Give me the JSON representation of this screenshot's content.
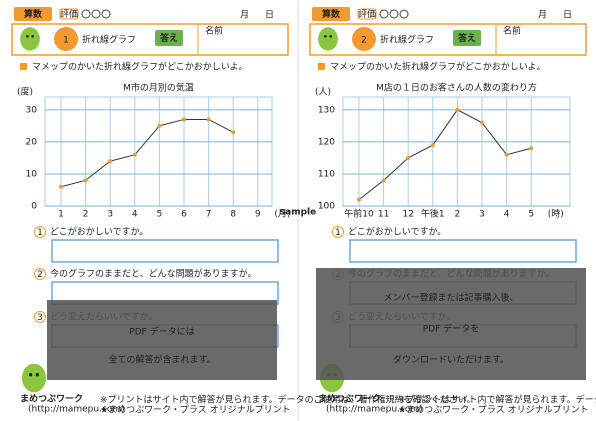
{
  "watermark": "sample",
  "pages": [
    {
      "subject": "算数",
      "rating": "評価",
      "month": "月",
      "day": "日",
      "number": "1",
      "topic": "折れ線グラフ",
      "answer": "答え",
      "name": "名前",
      "prompt": "マメップのかいた折れ線グラフがどこかおかしいよ。",
      "questions": [
        {
          "number": "1",
          "text": "どこがおかしいですか。"
        },
        {
          "number": "2",
          "text": "今のグラフのままだと、どんな問題がありますか。"
        },
        {
          "number": "3",
          "text": "どう変えたらいいですか。"
        }
      ],
      "overlay": [
        "PDF データには",
        "全ての解答が含まれます。"
      ],
      "footer": {
        "logo": "まめつぶワーク",
        "url": "(http://mamepu.com)",
        "note": "※プリントはサイト内で解答が見られます。データのご使用は、著作権規約を確認ください。",
        "brand": "★まめつぶワーク・プラス オリジナルプリント"
      }
    },
    {
      "subject": "算数",
      "rating": "評価",
      "month": "月",
      "day": "日",
      "number": "2",
      "topic": "折れ線グラフ",
      "answer": "答え",
      "name": "名前",
      "prompt": "マメップのかいた折れ線グラフがどこかおかしいよ。",
      "questions": [
        {
          "number": "1",
          "text": "どこがおかしいですか。"
        },
        {
          "number": "2",
          "text": "今のグラフのままだと、どんな問題がありますか。"
        },
        {
          "number": "3",
          "text": "どう変えたらいいですか。"
        }
      ],
      "overlay": [
        "メンバー登録または記事購入後、",
        "PDF データを",
        "ダウンロードいただけます。"
      ],
      "footer": {
        "logo": "まめつぶワーク",
        "url": "(http://mamepu.com)",
        "note": "※プリントはサイト内で解答が見られます。データのご使用は、著作権規約を確認ください。",
        "brand": "★まめつぶワーク・プラス オリジナルプリント"
      }
    }
  ],
  "chart_data": [
    {
      "type": "line",
      "title": "M市の月別の気温",
      "y_label": "(度)",
      "x_unit": "(月)",
      "categories": [
        "1",
        "2",
        "3",
        "4",
        "5",
        "6",
        "7",
        "8",
        "9"
      ],
      "values": [
        6,
        8,
        14,
        16,
        25,
        27,
        27,
        23,
        null
      ],
      "ylim": [
        0,
        34
      ],
      "yticks": [
        0,
        10,
        20,
        30
      ],
      "grid": true,
      "color": "#333333",
      "marker_color": "#f29a2e"
    },
    {
      "type": "line",
      "title": "M店の１日のお客さんの人数の変わり方",
      "y_label": "(人)",
      "x_unit": "(時)",
      "categories": [
        "午前10",
        "11",
        "12",
        "午後1",
        "2",
        "3",
        "4",
        "5"
      ],
      "values": [
        102,
        108,
        115,
        119,
        130,
        126,
        116,
        118
      ],
      "ylim": [
        100,
        134
      ],
      "yticks": [
        100,
        110,
        120,
        130
      ],
      "grid": true,
      "color": "#333333",
      "marker_color": "#f29a2e"
    }
  ]
}
